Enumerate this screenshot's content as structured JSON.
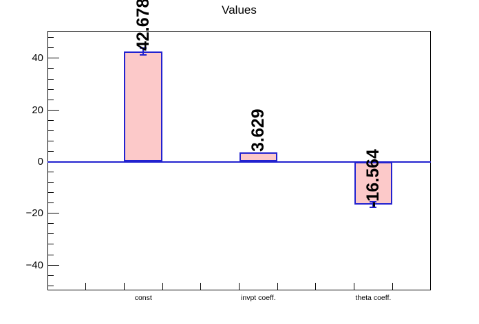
{
  "chart_data": {
    "type": "bar",
    "title": "Values",
    "categories": [
      "const",
      "invpt coeff.",
      "theta coeff."
    ],
    "values": [
      42.678,
      3.629,
      -16.564
    ],
    "value_labels": [
      "42.678",
      "3.629",
      "-16.564"
    ],
    "errors": [
      1.3,
      0,
      1.1
    ],
    "ylim": [
      -49.8,
      50.6
    ],
    "y_major_ticks": [
      40,
      20,
      0,
      -20,
      -40
    ],
    "y_major_labels": [
      "40",
      "20",
      "0",
      "−20",
      "−40"
    ],
    "y_minor_step": 4,
    "x_slots": 10,
    "bar_slot_indices": [
      2,
      5,
      8
    ],
    "grid": false,
    "legend": "none",
    "colors": {
      "background": "#ffffff",
      "frame_border": "#000000",
      "bar_fill": "#fcc9c9",
      "bar_border": "#2222cf",
      "zero_line": "#2222cf",
      "error_bar": "#2222cf",
      "text": "#000000"
    }
  }
}
